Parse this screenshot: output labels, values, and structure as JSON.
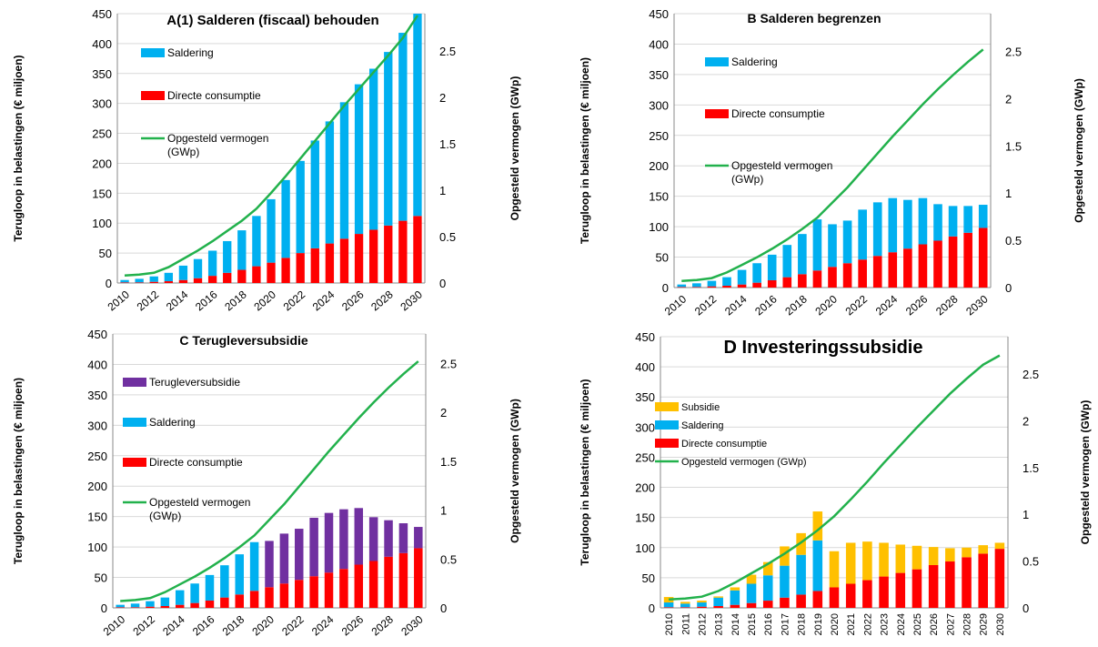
{
  "chart_data": [
    {
      "panel": "A",
      "type": "bar",
      "title": "A(1) Salderen (fiscaal) behouden",
      "ylabel": "Terugloop in belastingen (€ miljoen)",
      "y2label": "Opgesteld vermogen (GWp)",
      "ylim": [
        0,
        450
      ],
      "y2lim": [
        0,
        2.9
      ],
      "yticks": [
        "0",
        "50",
        "100",
        "150",
        "200",
        "250",
        "300",
        "350",
        "400",
        "450"
      ],
      "y2ticks": [
        "0",
        "0.5",
        "1",
        "1.5",
        "2",
        "2.5"
      ],
      "x": [
        2010,
        2011,
        2012,
        2013,
        2014,
        2015,
        2016,
        2017,
        2018,
        2019,
        2020,
        2021,
        2022,
        2023,
        2024,
        2025,
        2026,
        2027,
        2028,
        2029,
        2030
      ],
      "xticks": [
        "2010",
        "2012",
        "2014",
        "2016",
        "2018",
        "2020",
        "2022",
        "2024",
        "2026",
        "2028",
        "2030"
      ],
      "legend": [
        "Saldering",
        "Directe consumptie",
        "Opgesteld vermogen (GWp)"
      ],
      "series": [
        {
          "name": "Directe consumptie",
          "kind": "bar",
          "color": "#ff0000",
          "values": [
            1,
            1,
            2,
            3,
            5,
            8,
            12,
            17,
            22,
            28,
            34,
            42,
            50,
            58,
            66,
            74,
            82,
            89,
            96,
            104,
            112
          ]
        },
        {
          "name": "Saldering",
          "kind": "bar",
          "color": "#00b0f0",
          "values": [
            4,
            6,
            9,
            14,
            24,
            32,
            42,
            53,
            66,
            84,
            106,
            130,
            154,
            180,
            204,
            228,
            250,
            269,
            290,
            314,
            338
          ]
        },
        {
          "name": "Opgesteld vermogen (GWp)",
          "kind": "line",
          "color": "#22b14c",
          "axis": "y2",
          "values": [
            0.08,
            0.09,
            0.11,
            0.17,
            0.26,
            0.35,
            0.45,
            0.56,
            0.67,
            0.8,
            0.97,
            1.15,
            1.34,
            1.53,
            1.72,
            1.91,
            2.09,
            2.27,
            2.45,
            2.64,
            2.88
          ]
        }
      ]
    },
    {
      "panel": "B",
      "type": "bar",
      "title": "B Salderen begrenzen",
      "ylabel": "Terugloop in belastingen  (€ miljoen)",
      "y2label": "Opgesteld vermogen (GWp)",
      "ylim": [
        0,
        450
      ],
      "y2lim": [
        0,
        2.9
      ],
      "yticks": [
        "0",
        "50",
        "100",
        "150",
        "200",
        "250",
        "300",
        "350",
        "400",
        "450"
      ],
      "y2ticks": [
        "0",
        "0.5",
        "1",
        "1.5",
        "2",
        "2.5"
      ],
      "x": [
        2010,
        2011,
        2012,
        2013,
        2014,
        2015,
        2016,
        2017,
        2018,
        2019,
        2020,
        2021,
        2022,
        2023,
        2024,
        2025,
        2026,
        2027,
        2028,
        2029,
        2030
      ],
      "xticks": [
        "2010",
        "2012",
        "2014",
        "2016",
        "2018",
        "2020",
        "2022",
        "2024",
        "2026",
        "2028",
        "2030"
      ],
      "legend": [
        "Saldering",
        "Directe consumptie",
        "Opgesteld vermogen (GWp)"
      ],
      "series": [
        {
          "name": "Directe consumptie",
          "kind": "bar",
          "color": "#ff0000",
          "values": [
            1,
            1,
            2,
            3,
            5,
            8,
            12,
            17,
            22,
            28,
            34,
            40,
            46,
            52,
            58,
            64,
            71,
            77,
            84,
            90,
            98
          ]
        },
        {
          "name": "Saldering",
          "kind": "bar",
          "color": "#00b0f0",
          "values": [
            4,
            6,
            9,
            14,
            24,
            32,
            42,
            53,
            66,
            84,
            70,
            70,
            82,
            88,
            89,
            80,
            76,
            60,
            50,
            44,
            38
          ]
        },
        {
          "name": "Opgesteld vermogen (GWp)",
          "kind": "line",
          "color": "#22b14c",
          "axis": "y2",
          "values": [
            0.07,
            0.08,
            0.1,
            0.16,
            0.24,
            0.32,
            0.41,
            0.51,
            0.62,
            0.74,
            0.9,
            1.06,
            1.24,
            1.42,
            1.6,
            1.77,
            1.94,
            2.1,
            2.25,
            2.39,
            2.52
          ]
        }
      ]
    },
    {
      "panel": "C",
      "type": "bar",
      "title": "C Terugleversubsidie",
      "ylabel": "Terugloop in belastingen (€ miljoen)",
      "y2label": "Opgesteld vermogen (GWp)",
      "ylim": [
        0,
        450
      ],
      "y2lim": [
        0,
        2.8
      ],
      "yticks": [
        "0",
        "50",
        "100",
        "150",
        "200",
        "250",
        "300",
        "350",
        "400",
        "450"
      ],
      "y2ticks": [
        "0",
        "0.5",
        "1",
        "1.5",
        "2",
        "2.5"
      ],
      "x": [
        2010,
        2011,
        2012,
        2013,
        2014,
        2015,
        2016,
        2017,
        2018,
        2019,
        2020,
        2021,
        2022,
        2023,
        2024,
        2025,
        2026,
        2027,
        2028,
        2029,
        2030
      ],
      "xticks": [
        "2010",
        "2012",
        "2014",
        "2016",
        "2018",
        "2020",
        "2022",
        "2024",
        "2026",
        "2028",
        "2030"
      ],
      "legend": [
        "Terugleversubsidie",
        "Saldering",
        "Directe consumptie",
        "Opgesteld vermogen (GWp)"
      ],
      "series": [
        {
          "name": "Directe consumptie",
          "kind": "bar",
          "color": "#ff0000",
          "values": [
            1,
            1,
            2,
            3,
            5,
            8,
            12,
            17,
            22,
            28,
            34,
            40,
            46,
            52,
            58,
            64,
            71,
            77,
            84,
            90,
            98
          ]
        },
        {
          "name": "Saldering",
          "kind": "bar",
          "color": "#00b0f0",
          "values": [
            4,
            6,
            9,
            14,
            24,
            32,
            42,
            53,
            66,
            80,
            0,
            0,
            0,
            0,
            0,
            0,
            0,
            0,
            0,
            0,
            0
          ]
        },
        {
          "name": "Terugleversubsidie",
          "kind": "bar",
          "color": "#7030a0",
          "values": [
            0,
            0,
            0,
            0,
            0,
            0,
            0,
            0,
            0,
            0,
            76,
            82,
            84,
            96,
            98,
            98,
            93,
            72,
            60,
            49,
            35
          ]
        },
        {
          "name": "Opgesteld vermogen (GWp)",
          "kind": "line",
          "color": "#22b14c",
          "axis": "y2",
          "values": [
            0.07,
            0.08,
            0.1,
            0.16,
            0.24,
            0.32,
            0.41,
            0.51,
            0.62,
            0.74,
            0.9,
            1.06,
            1.24,
            1.42,
            1.6,
            1.77,
            1.94,
            2.1,
            2.25,
            2.39,
            2.52
          ]
        }
      ]
    },
    {
      "panel": "D",
      "type": "bar",
      "title": "D Investeringssubsidie",
      "ylabel": "Terugloop in belastingen (€ miljoen)",
      "y2label": "Opgesteld vermogen (GWp)",
      "ylim": [
        0,
        450
      ],
      "y2lim": [
        0,
        2.9
      ],
      "yticks": [
        "0",
        "50",
        "100",
        "150",
        "200",
        "250",
        "300",
        "350",
        "400",
        "450"
      ],
      "y2ticks": [
        "0",
        "0.5",
        "1",
        "1.5",
        "2",
        "2.5"
      ],
      "x": [
        2010,
        2011,
        2012,
        2013,
        2014,
        2015,
        2016,
        2017,
        2018,
        2019,
        2020,
        2021,
        2022,
        2023,
        2024,
        2025,
        2026,
        2027,
        2028,
        2029,
        2030
      ],
      "xticks": [
        "2010",
        "2011",
        "2012",
        "2013",
        "2014",
        "2015",
        "2016",
        "2017",
        "2018",
        "2019",
        "2020",
        "2021",
        "2022",
        "2023",
        "2024",
        "2025",
        "2026",
        "2027",
        "2028",
        "2029",
        "2030"
      ],
      "legend": [
        "Subsidie",
        "Saldering",
        "Directe consumptie",
        "Opgesteld vermogen (GWp)"
      ],
      "series": [
        {
          "name": "Directe consumptie",
          "kind": "bar",
          "color": "#ff0000",
          "values": [
            1,
            1,
            2,
            3,
            5,
            8,
            12,
            17,
            22,
            28,
            34,
            40,
            46,
            52,
            58,
            64,
            71,
            77,
            84,
            90,
            98
          ]
        },
        {
          "name": "Saldering",
          "kind": "bar",
          "color": "#00b0f0",
          "values": [
            8,
            6,
            7,
            14,
            24,
            32,
            42,
            53,
            66,
            84,
            0,
            0,
            0,
            0,
            0,
            0,
            0,
            0,
            0,
            0,
            0
          ]
        },
        {
          "name": "Subsidie",
          "kind": "bar",
          "color": "#ffc000",
          "values": [
            9,
            3,
            3,
            2,
            5,
            15,
            22,
            32,
            36,
            48,
            60,
            68,
            64,
            56,
            47,
            39,
            30,
            22,
            16,
            14,
            10
          ]
        },
        {
          "name": "Opgesteld vermogen (GWp)",
          "kind": "line",
          "color": "#22b14c",
          "axis": "y2",
          "values": [
            0.09,
            0.1,
            0.12,
            0.18,
            0.27,
            0.37,
            0.47,
            0.58,
            0.7,
            0.83,
            0.98,
            1.16,
            1.35,
            1.55,
            1.74,
            1.93,
            2.11,
            2.29,
            2.45,
            2.6,
            2.7
          ]
        }
      ]
    }
  ]
}
